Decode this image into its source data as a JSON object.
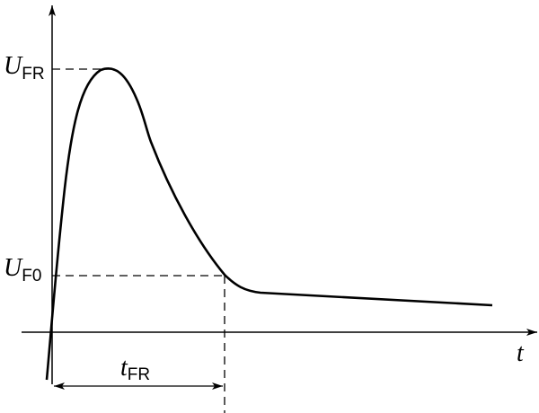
{
  "labels": {
    "u_fr": {
      "symbol": "U",
      "subscript": "FR"
    },
    "u_f0": {
      "symbol": "U",
      "subscript": "F0"
    },
    "t_fr": {
      "symbol": "t",
      "subscript": "FR"
    },
    "t_axis": "t"
  }
}
